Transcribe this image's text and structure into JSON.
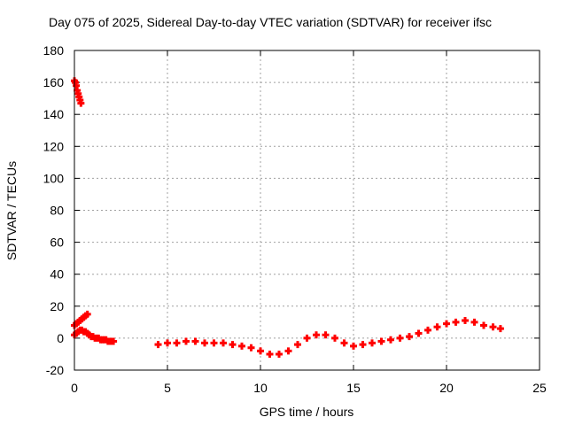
{
  "chart_data": {
    "type": "scatter",
    "title": "Day 075 of 2025, Sidereal Day-to-day VTEC variation (SDTVAR) for receiver ifsc",
    "xlabel": "GPS time / hours",
    "ylabel": "SDTVAR / TECUs",
    "xlim": [
      0,
      25
    ],
    "ylim": [
      -20,
      180
    ],
    "xticks": [
      0,
      5,
      10,
      15,
      20,
      25
    ],
    "yticks": [
      -20,
      0,
      20,
      40,
      60,
      80,
      100,
      120,
      140,
      160,
      180
    ],
    "grid": true,
    "marker": "+",
    "color": "#ff0000",
    "series": [
      {
        "x": [
          0.0,
          0.05,
          0.1,
          0.15,
          0.2,
          0.25,
          0.3,
          0.35
        ],
        "y": [
          161,
          160,
          158,
          155,
          153,
          151,
          149,
          147
        ]
      },
      {
        "x": [
          0.0,
          0.1,
          0.2,
          0.3,
          0.4,
          0.5,
          0.6,
          0.7
        ],
        "y": [
          8,
          9,
          10,
          11,
          12,
          13,
          14,
          15
        ]
      },
      {
        "x": [
          0.0,
          0.1,
          0.2,
          0.3,
          0.4,
          0.5,
          0.6,
          0.7,
          0.8,
          0.9,
          1.0,
          1.1,
          1.2,
          1.3,
          1.4,
          1.5,
          1.6,
          1.7,
          1.8,
          1.9,
          2.0,
          2.1
        ],
        "y": [
          2,
          3,
          4,
          5,
          5,
          4,
          4,
          3,
          2,
          1,
          1,
          0,
          0,
          0,
          -1,
          -1,
          -1,
          -1,
          -2,
          -2,
          -2,
          -2
        ]
      },
      {
        "x": [
          4.5,
          5.0,
          5.5,
          6.0,
          6.5,
          7.0,
          7.5,
          8.0,
          8.5,
          9.0,
          9.5,
          10.0,
          10.5,
          11.0,
          11.5,
          12.0,
          12.5,
          13.0,
          13.5,
          14.0,
          14.5,
          15.0,
          15.5,
          16.0,
          16.5,
          17.0,
          17.5,
          18.0,
          18.5,
          19.0,
          19.5,
          20.0,
          20.5,
          21.0,
          21.5,
          22.0,
          22.5,
          22.9
        ],
        "y": [
          -4,
          -3,
          -3,
          -2,
          -2,
          -3,
          -3,
          -3,
          -4,
          -5,
          -6,
          -8,
          -10,
          -10,
          -8,
          -4,
          0,
          2,
          2,
          0,
          -3,
          -5,
          -4,
          -3,
          -2,
          -1,
          0,
          1,
          3,
          5,
          7,
          9,
          10,
          11,
          10,
          8,
          7,
          6
        ]
      }
    ]
  }
}
